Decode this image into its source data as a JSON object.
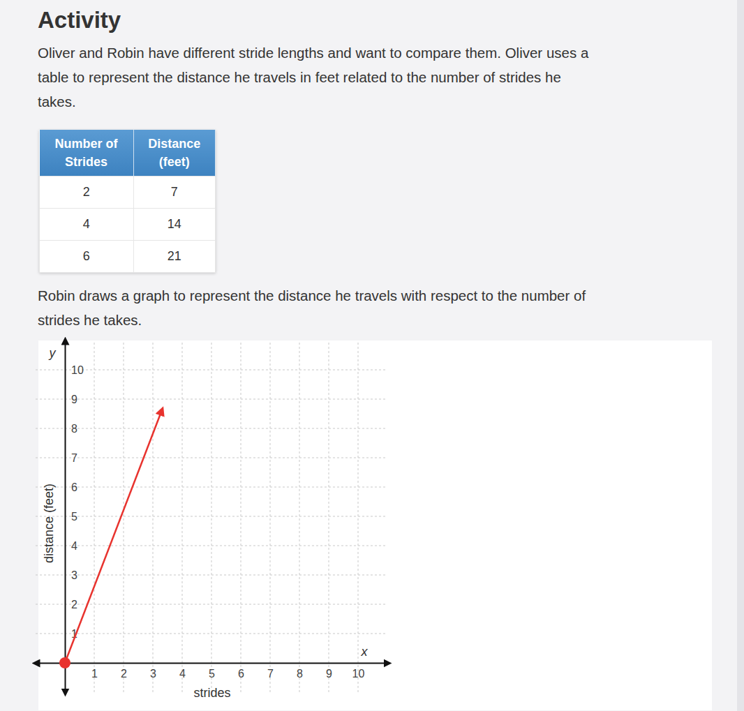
{
  "heading": "Activity",
  "intro": [
    "Oliver and Robin have different stride lengths and want to compare them. Oliver uses a",
    "table to represent the distance he travels in feet related to the number of strides he",
    "takes."
  ],
  "table": {
    "header": [
      [
        "Number of",
        "Strides"
      ],
      [
        "Distance",
        "(feet)"
      ]
    ],
    "rows": [
      [
        2,
        7
      ],
      [
        4,
        14
      ],
      [
        6,
        21
      ]
    ]
  },
  "graph_intro": [
    "Robin draws a graph to represent the distance he travels with respect to the number of",
    "strides he takes."
  ],
  "chart_data": {
    "type": "line",
    "xlabel": "strides",
    "ylabel": "distance (feet)",
    "x_axis_name": "x",
    "y_axis_name": "y",
    "x": [
      0,
      3.3
    ],
    "series": [
      {
        "values": [
          0,
          8.6
        ],
        "color": "#e8332e"
      }
    ],
    "xlim": [
      -1,
      11
    ],
    "ylim": [
      -1,
      11
    ],
    "xticks": [
      1,
      2,
      3,
      4,
      5,
      6,
      7,
      8,
      9,
      10
    ],
    "yticks": [
      1,
      2,
      3,
      4,
      5,
      6,
      7,
      8,
      9,
      10
    ],
    "grid": true
  }
}
